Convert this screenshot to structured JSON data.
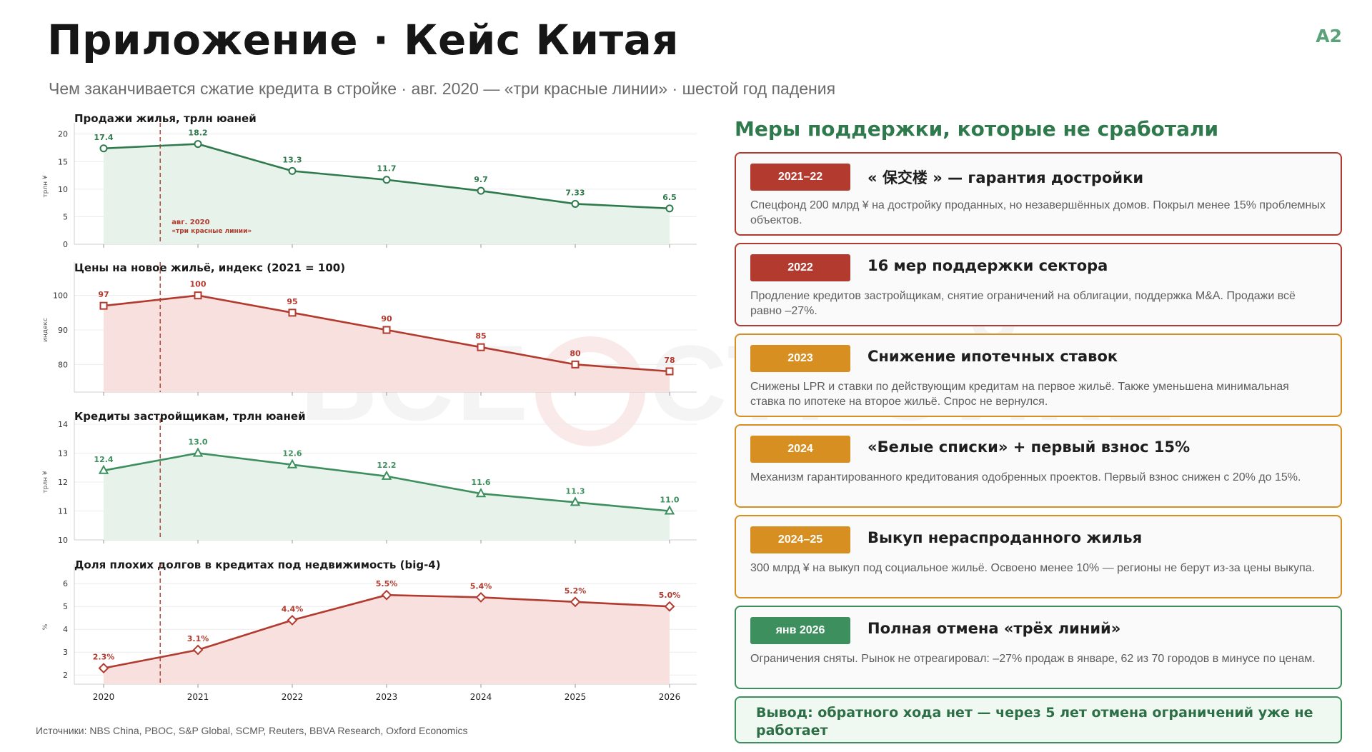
{
  "header": {
    "title": "Приложение · Кейс Китая",
    "code": "A2",
    "subtitle": "Чем заканчивается сжатие кредита в стройке · авг. 2020 — «три красные линии» · шестой год падения"
  },
  "watermark": "ВСЕ О СТРОЙКЕ",
  "colors": {
    "green": "#2f7a4d",
    "red": "#b23a2e",
    "orange": "#d88f22",
    "green_fill": "#e6f2ea",
    "red_fill": "#f7e0dd"
  },
  "chart_data": [
    {
      "type": "area",
      "title": "Продажи жилья, трлн юаней",
      "ylabel": "трлн ¥",
      "x": [
        "2020",
        "2021",
        "2022",
        "2023",
        "2024",
        "2025",
        "2026"
      ],
      "values": [
        17.4,
        18.2,
        13.3,
        11.7,
        9.7,
        7.33,
        6.5
      ],
      "labels": [
        "17.4",
        "18.2",
        "13.3",
        "11.7",
        "9.7",
        "7.33",
        "6.5"
      ],
      "yticks": [
        0,
        5,
        10,
        15,
        20
      ],
      "ylim": [
        0,
        21
      ],
      "color": "#2f7a4d",
      "marker": "circle",
      "vline": {
        "x": 2020.6,
        "label1": "авг. 2020",
        "label2": "«три красные линии»"
      }
    },
    {
      "type": "area",
      "title": "Цены на новое жильё, индекс (2021 = 100)",
      "ylabel": "индекс",
      "x": [
        "2020",
        "2021",
        "2022",
        "2023",
        "2024",
        "2025",
        "2026"
      ],
      "values": [
        97,
        100,
        95,
        90,
        85,
        80,
        78
      ],
      "labels": [
        "97",
        "100",
        "95",
        "90",
        "85",
        "80",
        "78"
      ],
      "yticks": [
        80,
        90,
        100
      ],
      "ylim": [
        72,
        108
      ],
      "color": "#b23a2e",
      "marker": "square",
      "vline": {
        "x": 2020.6
      }
    },
    {
      "type": "area",
      "title": "Кредиты застройщикам, трлн юаней",
      "ylabel": "трлн ¥",
      "x": [
        "2020",
        "2021",
        "2022",
        "2023",
        "2024",
        "2025",
        "2026"
      ],
      "values": [
        12.4,
        13.0,
        12.6,
        12.2,
        11.6,
        11.3,
        11.0
      ],
      "labels": [
        "12.4",
        "13.0",
        "12.6",
        "12.2",
        "11.6",
        "11.3",
        "11.0"
      ],
      "yticks": [
        10,
        11,
        12,
        13,
        14
      ],
      "ylim": [
        10,
        14
      ],
      "color": "#3d8f5e",
      "marker": "triangle",
      "vline": {
        "x": 2020.6
      }
    },
    {
      "type": "area",
      "title": "Доля плохих долгов в кредитах под недвижимость (big-4)",
      "ylabel": "%",
      "x": [
        "2020",
        "2021",
        "2022",
        "2023",
        "2024",
        "2025",
        "2026"
      ],
      "values": [
        2.3,
        3.1,
        4.4,
        5.5,
        5.4,
        5.2,
        5.0
      ],
      "labels": [
        "2.3%",
        "3.1%",
        "4.4%",
        "5.5%",
        "5.4%",
        "5.2%",
        "5.0%"
      ],
      "yticks": [
        2,
        3,
        4,
        5,
        6
      ],
      "ylim": [
        1.6,
        6.6
      ],
      "color": "#b23a2e",
      "marker": "diamond",
      "vline": {
        "x": 2020.6
      }
    }
  ],
  "sources": "Источники: NBS China, PBOC, S&P Global, SCMP, Reuters, BBVA Research, Oxford Economics",
  "panel": {
    "title": "Меры поддержки, которые не сработали",
    "cards": [
      {
        "tag": "2021–22",
        "title": "« 保交楼 » — гарантия достройки",
        "desc": "Спецфонд 200 млрд ¥ на достройку проданных, но незавершённых домов. Покрыл менее 15% проблемных объектов.",
        "color": "#b23a2e"
      },
      {
        "tag": "2022",
        "title": "16 мер поддержки сектора",
        "desc": "Продление кредитов застройщикам, снятие ограничений на облигации, поддержка M&A. Продажи всё равно –27%.",
        "color": "#b23a2e"
      },
      {
        "tag": "2023",
        "title": "Снижение ипотечных ставок",
        "desc": "Снижены LPR и ставки по действующим кредитам на первое жильё. Также уменьшена минимальная ставка по ипотеке на второе жильё. Спрос не вернулся.",
        "color": "#d88f22"
      },
      {
        "tag": "2024",
        "title": "«Белые списки» + первый взнос 15%",
        "desc": "Механизм гарантированного кредитования одобренных проектов. Первый взнос снижен с 20% до 15%.",
        "color": "#d88f22"
      },
      {
        "tag": "2024–25",
        "title": "Выкуп нераспроданного жилья",
        "desc": "300 млрд ¥ на выкуп под социальное жильё. Освоено менее 10% — регионы не берут из-за цены выкупа.",
        "color": "#d88f22"
      },
      {
        "tag": "янв 2026",
        "title": "Полная отмена «трёх линий»",
        "desc": "Ограничения сняты. Рынок не отреагировал: –27% продаж в январе, 62 из 70 городов в минусе по ценам.",
        "color": "#3d8f5e"
      }
    ],
    "conclusion": "Вывод: обратного хода нет — через 5 лет отмена ограничений уже не работает"
  }
}
